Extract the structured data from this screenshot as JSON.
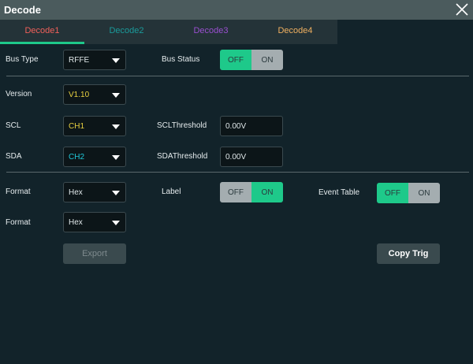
{
  "title": "Decode",
  "tabs": [
    {
      "label": "Decode1",
      "color": "#f0605a"
    },
    {
      "label": "Decode2",
      "color": "#1a9a9a"
    },
    {
      "label": "Decode3",
      "color": "#9a4fd0"
    },
    {
      "label": "Decode4",
      "color": "#f0b060"
    }
  ],
  "bus_type": {
    "label": "Bus Type",
    "value": "RFFE"
  },
  "bus_status": {
    "label": "Bus Status",
    "off": "OFF",
    "on": "ON",
    "state": "OFF"
  },
  "version": {
    "label": "Version",
    "value": "V1.10",
    "color": "#e8d040"
  },
  "scl": {
    "label": "SCL",
    "value": "CH1",
    "color": "#e8d040",
    "threshold_label": "SCLThreshold",
    "threshold": "0.00V"
  },
  "sda": {
    "label": "SDA",
    "value": "CH2",
    "color": "#20c8d8",
    "threshold_label": "SDAThreshold",
    "threshold": "0.00V"
  },
  "format1": {
    "label": "Format",
    "value": "Hex"
  },
  "label_toggle": {
    "label": "Label",
    "off": "OFF",
    "on": "ON",
    "state": "ON"
  },
  "event_table": {
    "label": "Event Table",
    "off": "OFF",
    "on": "ON",
    "state": "OFF"
  },
  "format2": {
    "label": "Format",
    "value": "Hex"
  },
  "buttons": {
    "export": "Export",
    "copy_trig": "Copy Trig"
  }
}
